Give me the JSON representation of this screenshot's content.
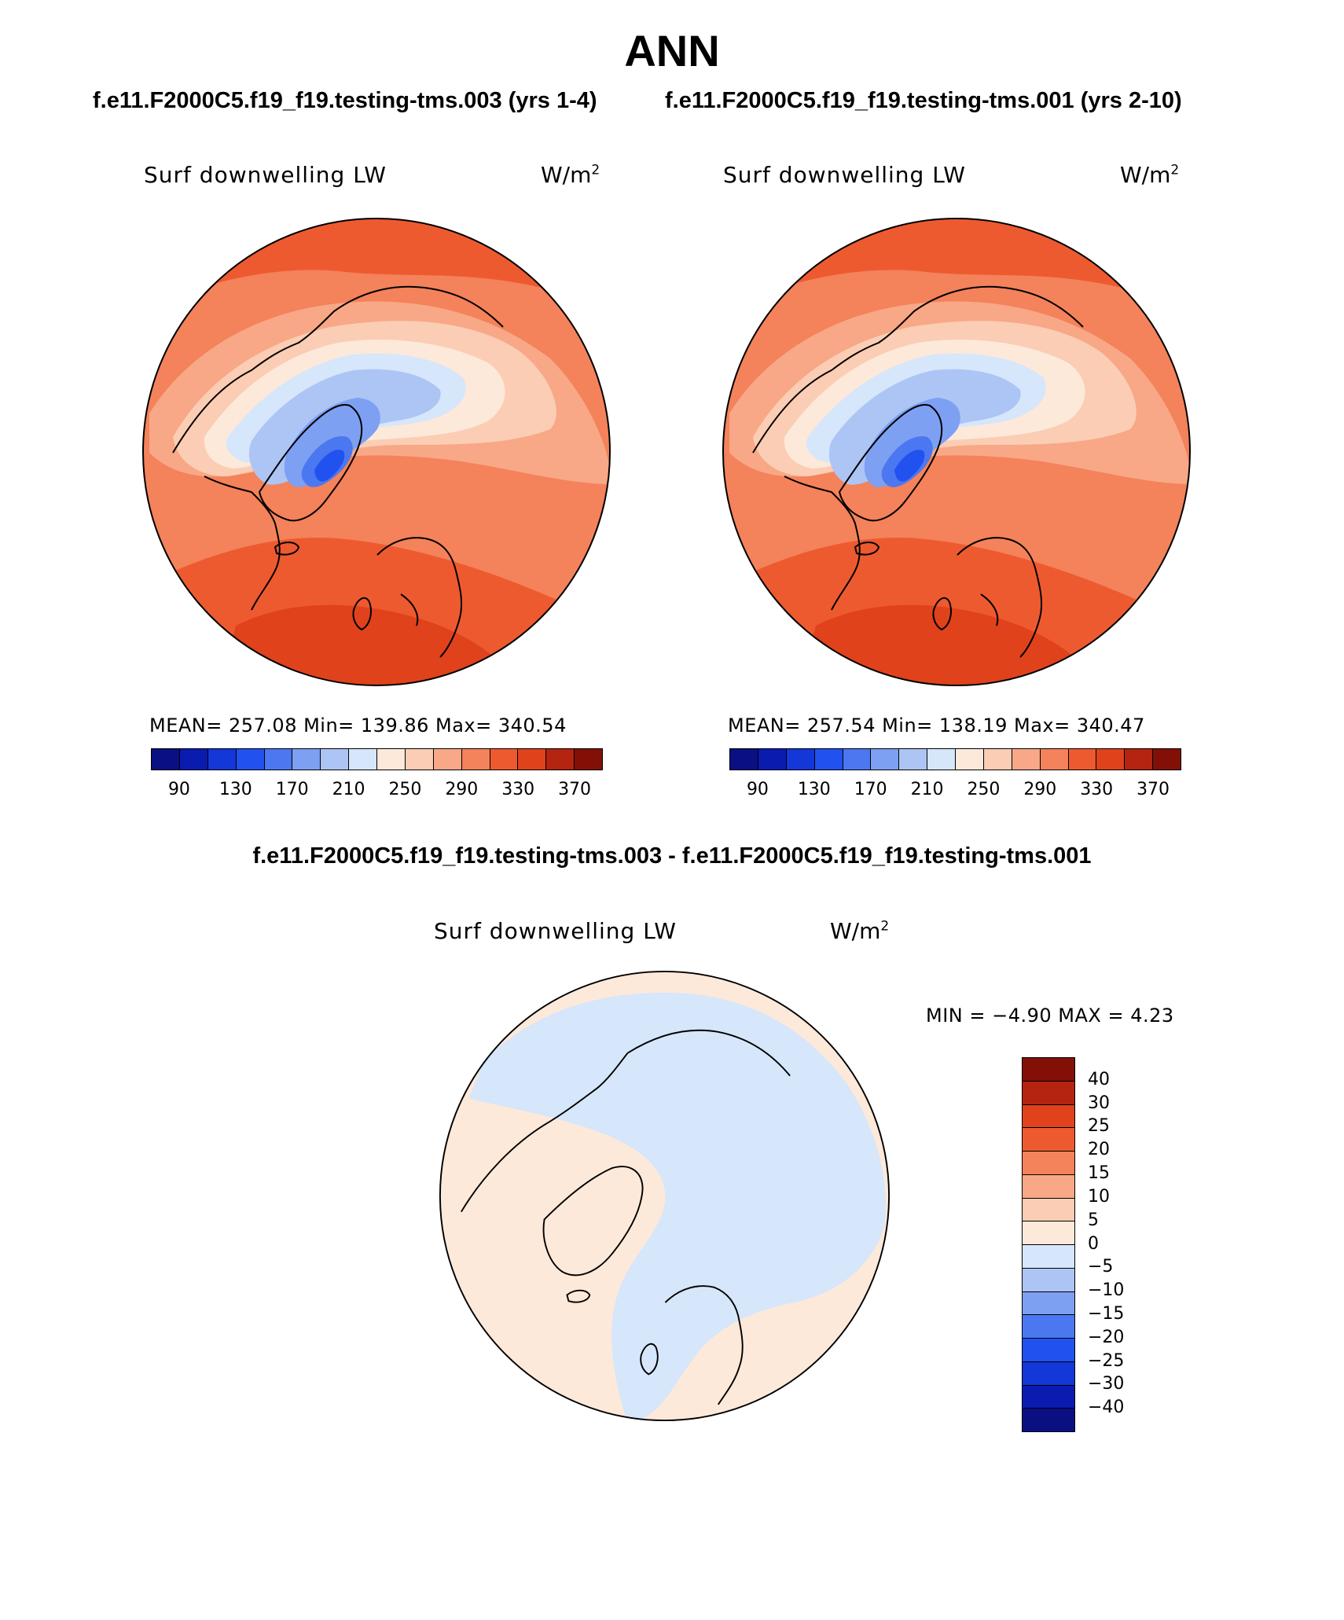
{
  "title": "ANN",
  "panels": {
    "left": {
      "case_title": "f.e11.F2000C5.f19_f19.testing-tms.003 (yrs 1-4)",
      "variable": "Surf downwelling LW",
      "units": "W/m",
      "units_sup": "2",
      "stats": "MEAN= 257.08   Min= 139.86   Max= 340.54"
    },
    "right": {
      "case_title": "f.e11.F2000C5.f19_f19.testing-tms.001 (yrs 2-10)",
      "variable": "Surf downwelling LW",
      "units": "W/m",
      "units_sup": "2",
      "stats": "MEAN= 257.54   Min= 138.19   Max= 340.47"
    },
    "diff": {
      "case_title": "f.e11.F2000C5.f19_f19.testing-tms.003 - f.e11.F2000C5.f19_f19.testing-tms.001",
      "variable": "Surf downwelling LW",
      "units": "W/m",
      "units_sup": "2",
      "stats": "MIN =  −4.90 MAX =    4.23"
    }
  },
  "chart_data": [
    {
      "type": "heatmap",
      "projection": "north polar stereographic",
      "title": "Surf downwelling LW",
      "units": "W/m2",
      "case": "f.e11.F2000C5.f19_f19.testing-tms.003 (yrs 1-4)",
      "mean": 257.08,
      "min": 139.86,
      "max": 340.54,
      "colorbar_levels": [
        70,
        90,
        110,
        130,
        150,
        170,
        190,
        210,
        230,
        250,
        270,
        290,
        310,
        330,
        350,
        370
      ],
      "colorbar_labels": [
        "90",
        "130",
        "170",
        "210",
        "250",
        "290",
        "330",
        "370"
      ],
      "colorbar_colors": [
        "#0a0f82",
        "#0a1bb0",
        "#1437d8",
        "#2152f0",
        "#4b78f0",
        "#7ea0f2",
        "#adc5f5",
        "#d6e6fb",
        "#fde9da",
        "#fbcdb4",
        "#f8a886",
        "#f4825a",
        "#ee5a30",
        "#e0421c",
        "#b42410",
        "#821006"
      ],
      "contour_levels": [
        70,
        90,
        110,
        130,
        150,
        170,
        190,
        210,
        230,
        250,
        270,
        290,
        310,
        330,
        350,
        370
      ]
    },
    {
      "type": "heatmap",
      "projection": "north polar stereographic",
      "title": "Surf downwelling LW",
      "units": "W/m2",
      "case": "f.e11.F2000C5.f19_f19.testing-tms.001 (yrs 2-10)",
      "mean": 257.54,
      "min": 138.19,
      "max": 340.47,
      "colorbar_levels": [
        70,
        90,
        110,
        130,
        150,
        170,
        190,
        210,
        230,
        250,
        270,
        290,
        310,
        330,
        350,
        370
      ],
      "colorbar_labels": [
        "90",
        "130",
        "170",
        "210",
        "250",
        "290",
        "330",
        "370"
      ],
      "colorbar_colors": [
        "#0a0f82",
        "#0a1bb0",
        "#1437d8",
        "#2152f0",
        "#4b78f0",
        "#7ea0f2",
        "#adc5f5",
        "#d6e6fb",
        "#fde9da",
        "#fbcdb4",
        "#f8a886",
        "#f4825a",
        "#ee5a30",
        "#e0421c",
        "#b42410",
        "#821006"
      ]
    },
    {
      "type": "heatmap",
      "projection": "north polar stereographic",
      "title": "Surf downwelling LW",
      "units": "W/m2",
      "case": "f.e11.F2000C5.f19_f19.testing-tms.003 - f.e11.F2000C5.f19_f19.testing-tms.001",
      "min": -4.9,
      "max": 4.23,
      "colorbar_labels": [
        "40",
        "30",
        "25",
        "20",
        "15",
        "10",
        "5",
        "0",
        "−5",
        "−10",
        "−15",
        "−20",
        "−25",
        "−30",
        "−40"
      ],
      "colorbar_colors": [
        "#821006",
        "#b42410",
        "#e0421c",
        "#ee5a30",
        "#f4825a",
        "#f8a886",
        "#fbcdb4",
        "#fde9da",
        "#d6e6fb",
        "#adc5f5",
        "#7ea0f2",
        "#4b78f0",
        "#2152f0",
        "#1437d8",
        "#0a1bb0",
        "#0a0f82"
      ],
      "field": "values within ±5: continents and N. Atlantic mostly 0 to 5, Arctic Ocean and N. Pacific mostly −5 to 0"
    }
  ]
}
